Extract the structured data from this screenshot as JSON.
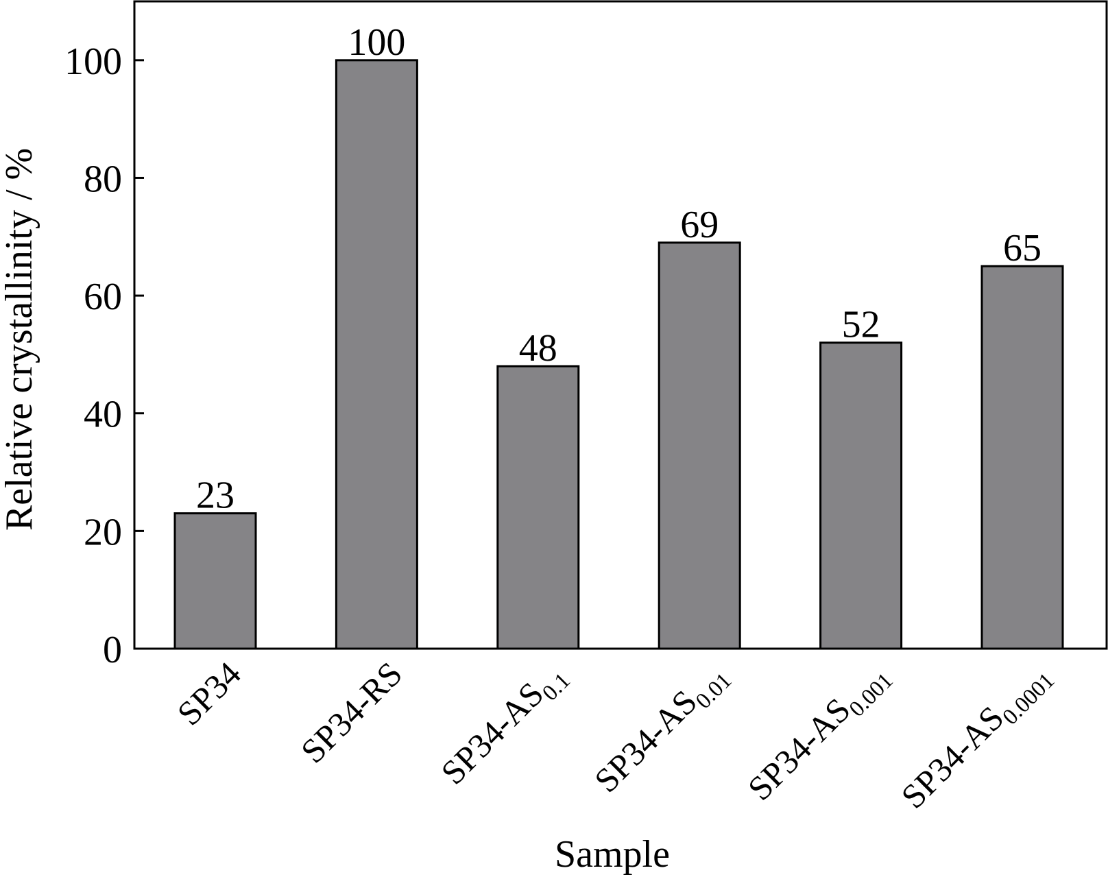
{
  "chart_data": {
    "type": "bar",
    "title": "",
    "xlabel": "Sample",
    "ylabel": "Relative crystallinity / %",
    "ylim": [
      0,
      110
    ],
    "yticks": [
      0,
      20,
      40,
      60,
      80,
      100
    ],
    "grid": false,
    "legend": "none",
    "categories": [
      {
        "main": "SP34",
        "sub": ""
      },
      {
        "main": "SP34-RS",
        "sub": ""
      },
      {
        "main": "SP34-AS",
        "sub": "0.1"
      },
      {
        "main": "SP34-AS",
        "sub": "0.01"
      },
      {
        "main": "SP34-AS",
        "sub": "0.001"
      },
      {
        "main": "SP34-AS",
        "sub": "0.0001"
      }
    ],
    "values": [
      23,
      100,
      48,
      69,
      52,
      65
    ],
    "data_labels": [
      "23",
      "100",
      "48",
      "69",
      "52",
      "65"
    ],
    "colors": {
      "bar_fill": "#858487",
      "bar_stroke": "#000000",
      "axis": "#000000"
    }
  }
}
